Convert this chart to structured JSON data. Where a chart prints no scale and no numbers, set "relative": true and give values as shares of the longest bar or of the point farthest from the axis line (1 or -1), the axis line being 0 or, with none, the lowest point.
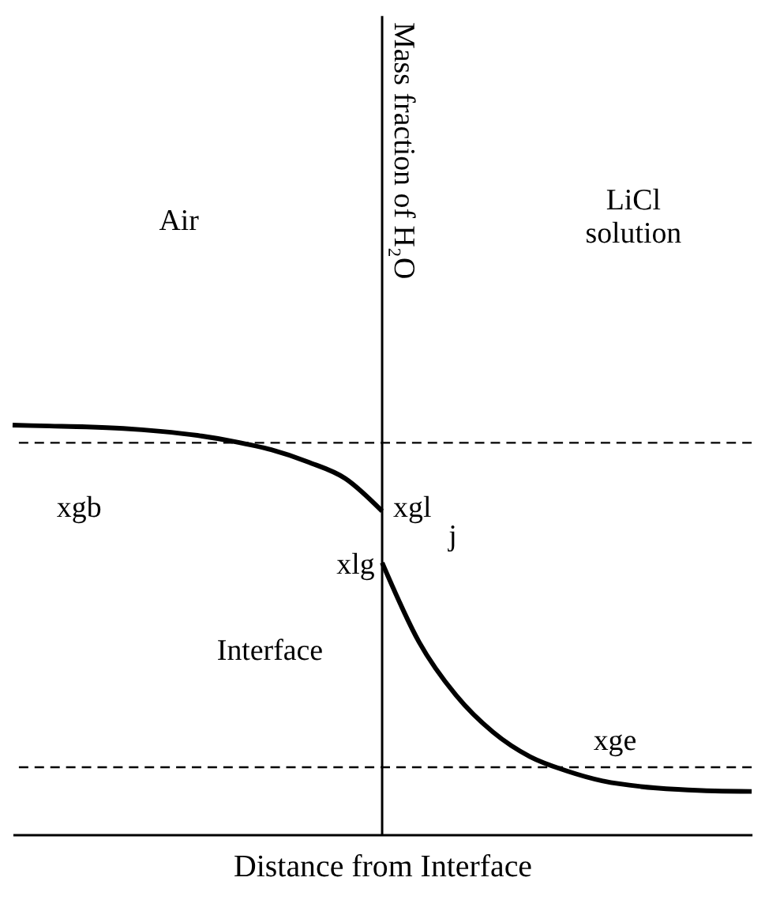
{
  "chart_data": {
    "type": "line",
    "relative": true,
    "xlabel": "Distance from Interface",
    "categories": [
      null,
      null,
      null,
      null,
      null,
      null,
      null,
      null,
      null,
      null,
      null,
      null,
      null,
      null,
      null,
      null,
      null,
      null,
      null,
      null,
      null
    ],
    "series": [
      {
        "color": "#000000",
        "values": [
          1.0,
          0.998,
          0.996,
          0.992,
          0.985,
          0.975,
          0.96,
          0.94,
          0.91,
          0.87,
          0.79,
          null,
          null,
          null,
          null,
          null,
          null,
          null,
          null,
          null,
          null
        ]
      },
      {
        "color": "#000000",
        "values": [
          null,
          null,
          null,
          null,
          null,
          null,
          null,
          null,
          null,
          null,
          0.664,
          0.47,
          0.34,
          0.25,
          0.19,
          0.155,
          0.13,
          0.117,
          0.11,
          0.106,
          0.105
        ]
      }
    ],
    "ref_lines": [
      {
        "axis": "y",
        "value": 0.957,
        "line_style": "dashed",
        "color": "#000000"
      },
      {
        "axis": "y",
        "value": 0.164,
        "line_style": "dashed",
        "color": "#000000"
      }
    ],
    "annotations": [
      "Mass fraction of H₂O",
      "Air",
      "LiCl solution",
      "xgb",
      "xgl",
      "xlg",
      "j",
      "Interface",
      "xge"
    ],
    "line_style": "solid"
  }
}
